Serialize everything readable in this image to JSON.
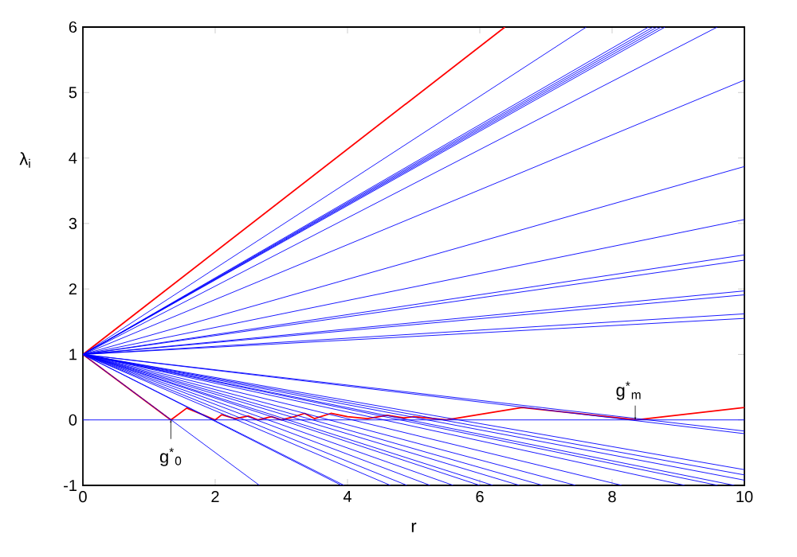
{
  "chart_data": {
    "type": "line",
    "xlabel": "r",
    "ylabel": "λ$_{i}$",
    "xlim": [
      0,
      10
    ],
    "ylim": [
      -1,
      6
    ],
    "xticks": [
      0,
      2,
      4,
      6,
      8,
      10
    ],
    "yticks": [
      -1,
      0,
      1,
      2,
      3,
      4,
      5,
      6
    ],
    "annotations": [
      {
        "text": "g$^{*}$$_{0}$",
        "x": 1.33,
        "y": 0
      },
      {
        "text": "g$^{*}$$_{m}$",
        "x": 8.35,
        "y": 0
      }
    ],
    "series": [
      {
        "color": "#ff0000",
        "x": [
          0,
          6.38
        ],
        "values": [
          1,
          6
        ]
      },
      {
        "color": "#ff0000",
        "x": [
          0,
          1.33,
          1.57,
          2.0,
          2.1,
          2.3,
          2.5,
          2.65,
          2.85,
          3.0,
          3.2,
          3.35,
          3.5,
          3.75,
          4.0,
          4.3,
          4.6,
          4.85,
          5.0,
          5.5,
          6.64,
          8.37,
          10
        ],
        "values": [
          1,
          0,
          0.18,
          0,
          0.08,
          0.02,
          0.06,
          0,
          0.05,
          0,
          0.05,
          0.1,
          0.02,
          0.1,
          0.05,
          0.02,
          0.07,
          0.03,
          0.05,
          0,
          0.19,
          0,
          0.19
        ]
      },
      {
        "color": "#0000ff",
        "x": [
          0,
          7.61
        ],
        "values": [
          1,
          6
        ]
      },
      {
        "color": "#0000ff",
        "x": [
          0,
          8.55
        ],
        "values": [
          1,
          6
        ]
      },
      {
        "color": "#0000ff",
        "x": [
          0,
          8.62
        ],
        "values": [
          1,
          6
        ]
      },
      {
        "color": "#0000ff",
        "x": [
          0,
          8.68
        ],
        "values": [
          1,
          6
        ]
      },
      {
        "color": "#0000ff",
        "x": [
          0,
          8.74
        ],
        "values": [
          1,
          6
        ]
      },
      {
        "color": "#0000ff",
        "x": [
          0,
          8.8
        ],
        "values": [
          1,
          6
        ]
      },
      {
        "color": "#0000ff",
        "x": [
          0,
          9.59
        ],
        "values": [
          1,
          6
        ]
      },
      {
        "color": "#0000ff",
        "x": [
          0,
          10
        ],
        "values": [
          1,
          5.19
        ]
      },
      {
        "color": "#0000ff",
        "x": [
          0,
          10
        ],
        "values": [
          1,
          3.87
        ]
      },
      {
        "color": "#0000ff",
        "x": [
          0,
          10
        ],
        "values": [
          1,
          3.06
        ]
      },
      {
        "color": "#0000ff",
        "x": [
          0,
          10
        ],
        "values": [
          1,
          2.52
        ]
      },
      {
        "color": "#0000ff",
        "x": [
          0,
          10
        ],
        "values": [
          1,
          2.44
        ]
      },
      {
        "color": "#0000ff",
        "x": [
          0,
          10
        ],
        "values": [
          1,
          1.97
        ]
      },
      {
        "color": "#0000ff",
        "x": [
          0,
          10
        ],
        "values": [
          1,
          1.91
        ]
      },
      {
        "color": "#0000ff",
        "x": [
          0,
          10
        ],
        "values": [
          1,
          1.62
        ]
      },
      {
        "color": "#0000ff",
        "x": [
          0,
          10
        ],
        "values": [
          1,
          1.55
        ]
      },
      {
        "color": "#0000ff",
        "x": [
          0,
          10
        ],
        "values": [
          0,
          0
        ]
      },
      {
        "color": "#0000ff",
        "x": [
          0,
          10
        ],
        "values": [
          1,
          -0.17
        ]
      },
      {
        "color": "#0000ff",
        "x": [
          0,
          10
        ],
        "values": [
          1,
          -0.21
        ]
      },
      {
        "color": "#0000ff",
        "x": [
          0,
          10
        ],
        "values": [
          1,
          -0.76
        ]
      },
      {
        "color": "#0000ff",
        "x": [
          0,
          10
        ],
        "values": [
          1,
          -0.84
        ]
      },
      {
        "color": "#0000ff",
        "x": [
          0,
          10
        ],
        "values": [
          1,
          -0.92
        ]
      },
      {
        "color": "#0000ff",
        "x": [
          0,
          2.67
        ],
        "values": [
          1,
          -1
        ]
      },
      {
        "color": "#0000ff",
        "x": [
          0,
          3.91
        ],
        "values": [
          1,
          -1
        ]
      },
      {
        "color": "#0000ff",
        "x": [
          0,
          3.95
        ],
        "values": [
          1,
          -1
        ]
      },
      {
        "color": "#0000ff",
        "x": [
          0,
          4.65
        ],
        "values": [
          1,
          -1
        ]
      },
      {
        "color": "#0000ff",
        "x": [
          0,
          4.9
        ],
        "values": [
          1,
          -1
        ]
      },
      {
        "color": "#0000ff",
        "x": [
          0,
          5.25
        ],
        "values": [
          1,
          -1
        ]
      },
      {
        "color": "#0000ff",
        "x": [
          0,
          5.6
        ],
        "values": [
          1,
          -1
        ]
      },
      {
        "color": "#0000ff",
        "x": [
          0,
          6.0
        ],
        "values": [
          1,
          -1
        ]
      },
      {
        "color": "#0000ff",
        "x": [
          0,
          6.2
        ],
        "values": [
          1,
          -1
        ]
      },
      {
        "color": "#0000ff",
        "x": [
          0,
          6.6
        ],
        "values": [
          1,
          -1
        ]
      },
      {
        "color": "#0000ff",
        "x": [
          0,
          6.95
        ],
        "values": [
          1,
          -1
        ]
      },
      {
        "color": "#0000ff",
        "x": [
          0,
          7.45
        ],
        "values": [
          1,
          -1
        ]
      },
      {
        "color": "#0000ff",
        "x": [
          0,
          8.15
        ],
        "values": [
          1,
          -1
        ]
      },
      {
        "color": "#0000ff",
        "x": [
          0,
          9.1
        ],
        "values": [
          1,
          -1
        ]
      },
      {
        "color": "#0000ff",
        "x": [
          0,
          9.6
        ],
        "values": [
          1,
          -1
        ]
      },
      {
        "color": "#0000ff",
        "x": [
          0,
          9.85
        ],
        "values": [
          1,
          -1
        ]
      }
    ]
  }
}
